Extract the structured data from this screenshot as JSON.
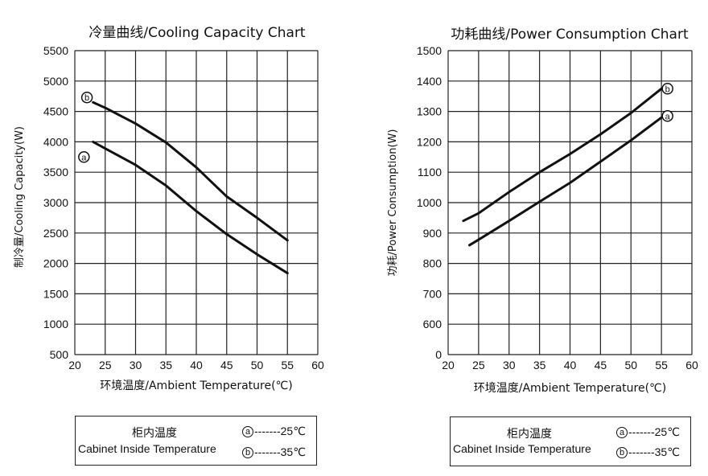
{
  "chart_data": [
    {
      "type": "line",
      "title": "冷量曲线/Cooling Capacity Chart",
      "xlabel": "环境温度/Ambient Temperature(℃)",
      "ylabel": "制冷量/Cooling Capacity(W)",
      "xlim": [
        20,
        60
      ],
      "ylim": [
        500,
        5500
      ],
      "xticks": [
        20,
        25,
        30,
        35,
        40,
        45,
        50,
        55,
        60
      ],
      "yticks": [
        500,
        1000,
        1500,
        2000,
        2500,
        3000,
        3500,
        4000,
        4500,
        5000,
        5500
      ],
      "grid": true,
      "series": [
        {
          "name": "b",
          "label": "ⓑ",
          "x": [
            23,
            25,
            30,
            35,
            40,
            45,
            50,
            55
          ],
          "values": [
            4650,
            4560,
            4300,
            3990,
            3580,
            3100,
            2750,
            2380
          ]
        },
        {
          "name": "a",
          "label": "ⓐ",
          "x": [
            23,
            25,
            30,
            35,
            40,
            45,
            50,
            55
          ],
          "values": [
            4000,
            3890,
            3620,
            3280,
            2860,
            2480,
            2150,
            1840
          ]
        }
      ]
    },
    {
      "type": "line",
      "title": "功耗曲线/Power Consumption Chart",
      "xlabel": "环境温度/Ambient Temperature(℃)",
      "ylabel": "功耗/Power Consumption(W)",
      "xlim": [
        20,
        60
      ],
      "ylim": [
        0,
        1500
      ],
      "xticks": [
        20,
        25,
        30,
        35,
        40,
        45,
        50,
        55,
        60
      ],
      "yticks": [
        0,
        600,
        700,
        800,
        900,
        1000,
        1100,
        1200,
        1300,
        1400,
        1500
      ],
      "grid": true,
      "series": [
        {
          "name": "b",
          "label": "ⓑ",
          "x": [
            22.5,
            25,
            30,
            35,
            40,
            45,
            50,
            55
          ],
          "values": [
            940,
            965,
            1035,
            1100,
            1160,
            1225,
            1295,
            1375
          ]
        },
        {
          "name": "a",
          "label": "ⓐ",
          "x": [
            23.5,
            25,
            30,
            35,
            40,
            45,
            50,
            55
          ],
          "values": [
            860,
            878,
            940,
            1003,
            1065,
            1135,
            1205,
            1280
          ]
        }
      ]
    }
  ],
  "legends": [
    {
      "title_cn": "柜内温度",
      "title_en": "Cabinet Inside Temperature",
      "a_mark": "ⓐ",
      "a_text": "-------25℃",
      "b_mark": "ⓑ",
      "b_text": "-------35℃"
    },
    {
      "title_cn": "柜内温度",
      "title_en": "Cabinet Inside Temperature",
      "a_mark": "ⓐ",
      "a_text": "-------25℃",
      "b_mark": "ⓑ",
      "b_text": "-------35℃"
    }
  ]
}
